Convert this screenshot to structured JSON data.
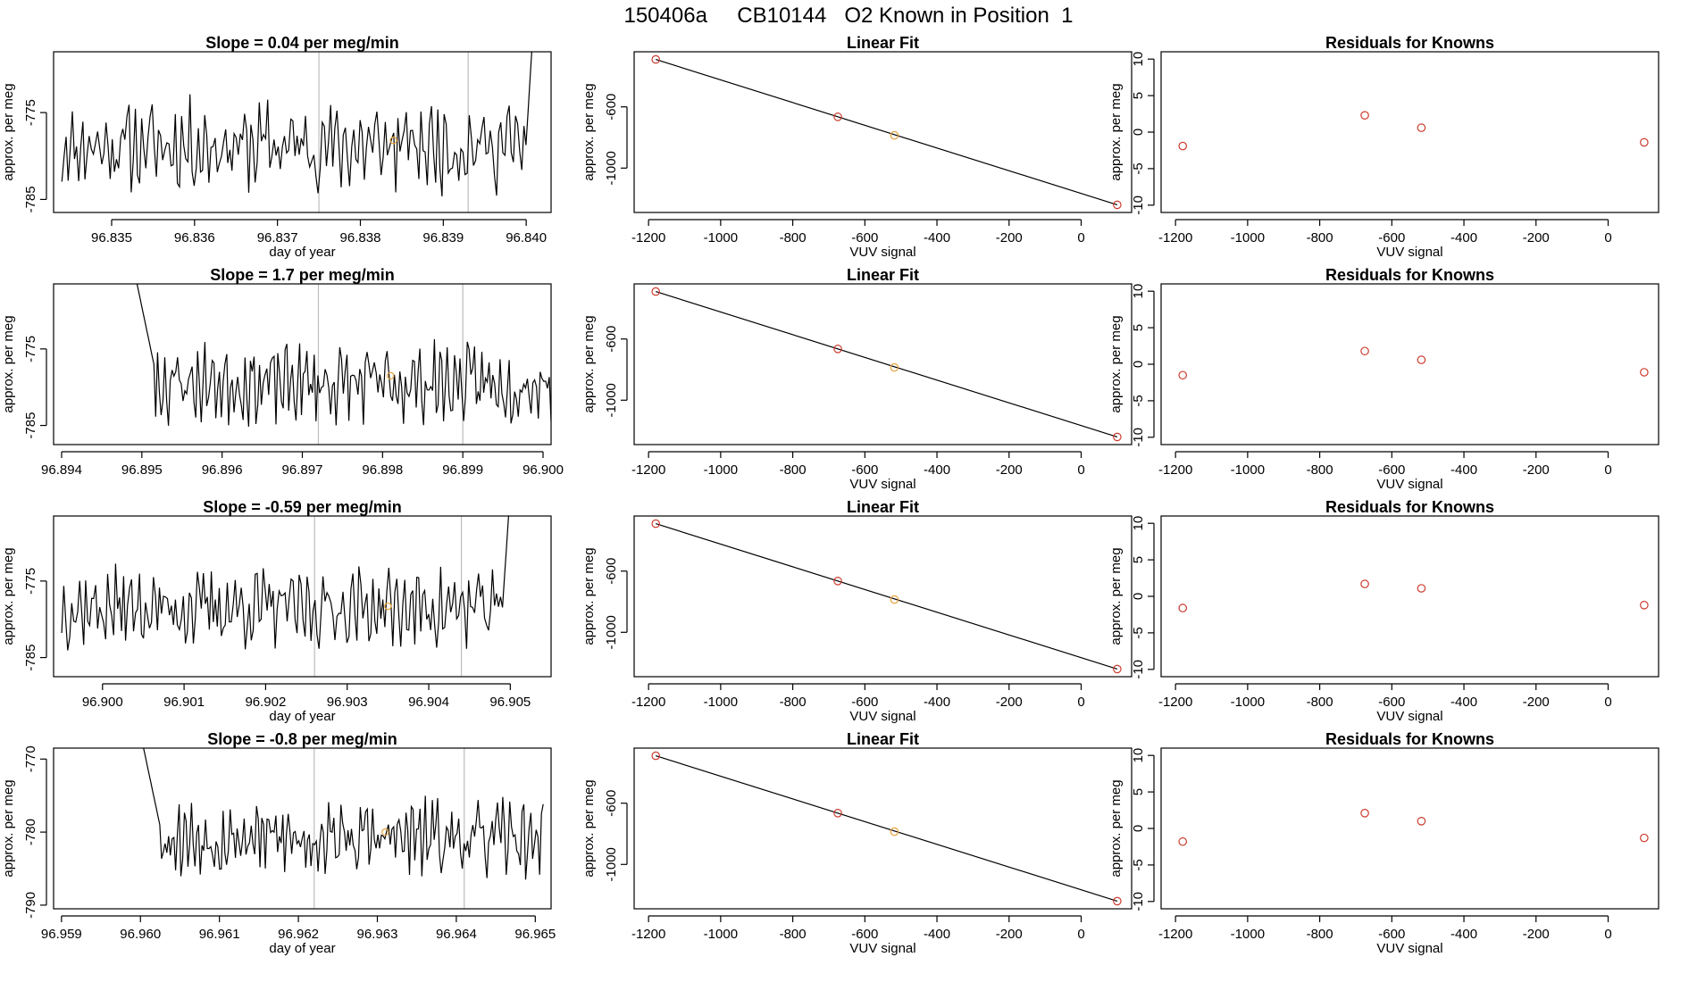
{
  "figure_title": "150406a     CB10144   O2 Known in Position  1",
  "colors": {
    "series_line": "#000000",
    "marker_red": "#cd3b2e",
    "marker_orange": "#e6a13a",
    "vline": "#bdbdbd",
    "axis": "#000000"
  },
  "chart_data": [
    {
      "type": "line",
      "role": "time_series",
      "row": 0,
      "title": "Slope =  0.04  per meg/min",
      "xlabel": "day of year",
      "ylabel": "approx. per meg",
      "xlim": [
        96.8343,
        96.8403
      ],
      "ylim": [
        -786.5,
        -768
      ],
      "xticks": [
        96.835,
        96.836,
        96.837,
        96.838,
        96.839,
        96.84
      ],
      "xtick_labels": [
        "96.835",
        "96.836",
        "96.837",
        "96.838",
        "96.839",
        "96.840"
      ],
      "yticks": [
        -775,
        -785
      ],
      "ytick_labels": [
        "-775",
        "-785"
      ],
      "vlines": [
        96.8375,
        96.8393
      ],
      "marker": {
        "x": 96.8384,
        "y": -778.2
      },
      "start_day": 96.8344,
      "end_day": 96.8402,
      "base_level": -778.8,
      "end_spike": "up",
      "start_spike": "none",
      "seed": 11
    },
    {
      "type": "scatter",
      "role": "linear_fit",
      "row": 0,
      "title": "Linear Fit",
      "xlabel": "VUV signal",
      "ylabel": "approx. per meg",
      "xlim": [
        -1240,
        140
      ],
      "ylim": [
        -1290,
        -240
      ],
      "xticks": [
        -1200,
        -1000,
        -800,
        -600,
        -400,
        -200,
        0
      ],
      "xtick_labels": [
        "-1200",
        "-1000",
        "-800",
        "-600",
        "-400",
        "-200",
        "0"
      ],
      "yticks": [
        -600,
        -1000
      ],
      "ytick_labels": [
        "-600",
        "-1000"
      ],
      "fit_line": {
        "x": [
          -1180,
          100
        ],
        "y": [
          -290,
          -1240
        ]
      },
      "points": [
        {
          "x": -1180,
          "y": -290,
          "color": "red"
        },
        {
          "x": -675,
          "y": -665,
          "color": "red"
        },
        {
          "x": -518,
          "y": -786,
          "color": "orange"
        },
        {
          "x": 100,
          "y": -1240,
          "color": "red"
        }
      ]
    },
    {
      "type": "scatter",
      "role": "residuals",
      "row": 0,
      "title": "Residuals for Knowns",
      "xlabel": "VUV signal",
      "ylabel": "approx. per meg",
      "xlim": [
        -1240,
        140
      ],
      "ylim": [
        -11,
        11
      ],
      "xticks": [
        -1200,
        -1000,
        -800,
        -600,
        -400,
        -200,
        0
      ],
      "xtick_labels": [
        "-1200",
        "-1000",
        "-800",
        "-600",
        "-400",
        "-200",
        "0"
      ],
      "yticks": [
        10,
        5,
        0,
        -5,
        -10
      ],
      "ytick_labels": [
        "10",
        "5",
        "0",
        "-5",
        "-10"
      ],
      "points": [
        {
          "x": -1180,
          "y": -1.9,
          "color": "red"
        },
        {
          "x": -675,
          "y": 2.3,
          "color": "red"
        },
        {
          "x": -518,
          "y": 0.6,
          "color": "red"
        },
        {
          "x": 100,
          "y": -1.4,
          "color": "red"
        }
      ]
    },
    {
      "type": "line",
      "role": "time_series",
      "row": 1,
      "title": "Slope =  1.7  per meg/min",
      "xlabel": "",
      "ylabel": "approx. per meg",
      "xlim": [
        96.8939,
        96.9001
      ],
      "ylim": [
        -787.5,
        -766.5
      ],
      "xticks": [
        96.894,
        96.895,
        96.896,
        96.897,
        96.898,
        96.899,
        96.9
      ],
      "xtick_labels": [
        "96.894",
        "96.895",
        "96.896",
        "96.897",
        "96.898",
        "96.899",
        "96.900"
      ],
      "yticks": [
        -775,
        -785
      ],
      "ytick_labels": [
        "-775",
        "-785"
      ],
      "vlines": [
        96.8972,
        96.899
      ],
      "marker": {
        "x": 96.8981,
        "y": -778.5
      },
      "start_day": 96.8949,
      "end_day": 96.9001,
      "base_level": -779.5,
      "end_spike": "none",
      "start_spike": "up",
      "seed": 23
    },
    {
      "type": "scatter",
      "role": "linear_fit",
      "row": 1,
      "title": "Linear Fit",
      "xlabel": "VUV signal",
      "ylabel": "approx. per meg",
      "xlim": [
        -1240,
        140
      ],
      "ylim": [
        -1290,
        -240
      ],
      "xticks": [
        -1200,
        -1000,
        -800,
        -600,
        -400,
        -200,
        0
      ],
      "xtick_labels": [
        "-1200",
        "-1000",
        "-800",
        "-600",
        "-400",
        "-200",
        "0"
      ],
      "yticks": [
        -600,
        -1000
      ],
      "ytick_labels": [
        "-600",
        "-1000"
      ],
      "fit_line": {
        "x": [
          -1180,
          100
        ],
        "y": [
          -290,
          -1240
        ]
      },
      "points": [
        {
          "x": -1180,
          "y": -290,
          "color": "red"
        },
        {
          "x": -675,
          "y": -665,
          "color": "red"
        },
        {
          "x": -518,
          "y": -786,
          "color": "orange"
        },
        {
          "x": 100,
          "y": -1240,
          "color": "red"
        }
      ]
    },
    {
      "type": "scatter",
      "role": "residuals",
      "row": 1,
      "title": "Residuals for Knowns",
      "xlabel": "VUV signal",
      "ylabel": "approx. per meg",
      "xlim": [
        -1240,
        140
      ],
      "ylim": [
        -11,
        11
      ],
      "xticks": [
        -1200,
        -1000,
        -800,
        -600,
        -400,
        -200,
        0
      ],
      "xtick_labels": [
        "-1200",
        "-1000",
        "-800",
        "-600",
        "-400",
        "-200",
        "0"
      ],
      "yticks": [
        10,
        5,
        0,
        -5,
        -10
      ],
      "ytick_labels": [
        "10",
        "5",
        "0",
        "-5",
        "-10"
      ],
      "points": [
        {
          "x": -1180,
          "y": -1.5,
          "color": "red"
        },
        {
          "x": -675,
          "y": 1.8,
          "color": "red"
        },
        {
          "x": -518,
          "y": 0.6,
          "color": "red"
        },
        {
          "x": 100,
          "y": -1.1,
          "color": "red"
        }
      ]
    },
    {
      "type": "line",
      "role": "time_series",
      "row": 2,
      "title": "Slope =  -0.59  per meg/min",
      "xlabel": "day of year",
      "ylabel": "approx. per meg",
      "xlim": [
        96.8994,
        96.9055
      ],
      "ylim": [
        -787.5,
        -766.5
      ],
      "xticks": [
        96.9,
        96.901,
        96.902,
        96.903,
        96.904,
        96.905
      ],
      "xtick_labels": [
        "96.900",
        "96.901",
        "96.902",
        "96.903",
        "96.904",
        "96.905"
      ],
      "yticks": [
        -775,
        -785
      ],
      "ytick_labels": [
        "-775",
        "-785"
      ],
      "vlines": [
        96.9026,
        96.9044
      ],
      "marker": {
        "x": 96.9035,
        "y": -778.3
      },
      "start_day": 96.8995,
      "end_day": 96.9051,
      "base_level": -778.5,
      "end_spike": "up",
      "start_spike": "none",
      "seed": 37
    },
    {
      "type": "scatter",
      "role": "linear_fit",
      "row": 2,
      "title": "Linear Fit",
      "xlabel": "VUV signal",
      "ylabel": "approx. per meg",
      "xlim": [
        -1240,
        140
      ],
      "ylim": [
        -1290,
        -240
      ],
      "xticks": [
        -1200,
        -1000,
        -800,
        -600,
        -400,
        -200,
        0
      ],
      "xtick_labels": [
        "-1200",
        "-1000",
        "-800",
        "-600",
        "-400",
        "-200",
        "0"
      ],
      "yticks": [
        -600,
        -1000
      ],
      "ytick_labels": [
        "-600",
        "-1000"
      ],
      "fit_line": {
        "x": [
          -1180,
          100
        ],
        "y": [
          -290,
          -1240
        ]
      },
      "points": [
        {
          "x": -1180,
          "y": -290,
          "color": "red"
        },
        {
          "x": -675,
          "y": -665,
          "color": "red"
        },
        {
          "x": -518,
          "y": -786,
          "color": "orange"
        },
        {
          "x": 100,
          "y": -1240,
          "color": "red"
        }
      ]
    },
    {
      "type": "scatter",
      "role": "residuals",
      "row": 2,
      "title": "Residuals for Knowns",
      "xlabel": "VUV signal",
      "ylabel": "approx. per meg",
      "xlim": [
        -1240,
        140
      ],
      "ylim": [
        -11,
        11
      ],
      "xticks": [
        -1200,
        -1000,
        -800,
        -600,
        -400,
        -200,
        0
      ],
      "xtick_labels": [
        "-1200",
        "-1000",
        "-800",
        "-600",
        "-400",
        "-200",
        "0"
      ],
      "yticks": [
        10,
        5,
        0,
        -5,
        -10
      ],
      "ytick_labels": [
        "10",
        "5",
        "0",
        "-5",
        "-10"
      ],
      "points": [
        {
          "x": -1180,
          "y": -1.6,
          "color": "red"
        },
        {
          "x": -675,
          "y": 1.7,
          "color": "red"
        },
        {
          "x": -518,
          "y": 1.1,
          "color": "red"
        },
        {
          "x": 100,
          "y": -1.2,
          "color": "red"
        }
      ]
    },
    {
      "type": "line",
      "role": "time_series",
      "row": 3,
      "title": "Slope =  -0.8  per meg/min",
      "xlabel": "day of year",
      "ylabel": "approx. per meg",
      "xlim": [
        96.9589,
        96.9652
      ],
      "ylim": [
        -790.5,
        -768.5
      ],
      "xticks": [
        96.959,
        96.96,
        96.961,
        96.962,
        96.963,
        96.964,
        96.965
      ],
      "xtick_labels": [
        "96.959",
        "96.960",
        "96.961",
        "96.962",
        "96.963",
        "96.964",
        "96.965"
      ],
      "yticks": [
        -770,
        -780,
        -790
      ],
      "ytick_labels": [
        "-770",
        "-780",
        "-790"
      ],
      "vlines": [
        96.9622,
        96.9641
      ],
      "marker": {
        "x": 96.9631,
        "y": -780
      },
      "start_day": 96.96,
      "end_day": 96.9651,
      "base_level": -780.8,
      "end_spike": "none",
      "start_spike": "up",
      "seed": 53
    },
    {
      "type": "scatter",
      "role": "linear_fit",
      "row": 3,
      "title": "Linear Fit",
      "xlabel": "VUV signal",
      "ylabel": "approx. per meg",
      "xlim": [
        -1240,
        140
      ],
      "ylim": [
        -1290,
        -240
      ],
      "xticks": [
        -1200,
        -1000,
        -800,
        -600,
        -400,
        -200,
        0
      ],
      "xtick_labels": [
        "-1200",
        "-1000",
        "-800",
        "-600",
        "-400",
        "-200",
        "0"
      ],
      "yticks": [
        -600,
        -1000
      ],
      "ytick_labels": [
        "-600",
        "-1000"
      ],
      "fit_line": {
        "x": [
          -1180,
          100
        ],
        "y": [
          -290,
          -1240
        ]
      },
      "points": [
        {
          "x": -1180,
          "y": -290,
          "color": "red"
        },
        {
          "x": -675,
          "y": -665,
          "color": "red"
        },
        {
          "x": -518,
          "y": -786,
          "color": "orange"
        },
        {
          "x": 100,
          "y": -1240,
          "color": "red"
        }
      ]
    },
    {
      "type": "scatter",
      "role": "residuals",
      "row": 3,
      "title": "Residuals for Knowns",
      "xlabel": "VUV signal",
      "ylabel": "approx. per meg",
      "xlim": [
        -1240,
        140
      ],
      "ylim": [
        -11,
        11
      ],
      "xticks": [
        -1200,
        -1000,
        -800,
        -600,
        -400,
        -200,
        0
      ],
      "xtick_labels": [
        "-1200",
        "-1000",
        "-800",
        "-600",
        "-400",
        "-200",
        "0"
      ],
      "yticks": [
        10,
        5,
        0,
        -5,
        -10
      ],
      "ytick_labels": [
        "10",
        "5",
        "0",
        "-5",
        "-10"
      ],
      "points": [
        {
          "x": -1180,
          "y": -1.8,
          "color": "red"
        },
        {
          "x": -675,
          "y": 2.1,
          "color": "red"
        },
        {
          "x": -518,
          "y": 1.0,
          "color": "red"
        },
        {
          "x": 100,
          "y": -1.3,
          "color": "red"
        }
      ]
    }
  ]
}
